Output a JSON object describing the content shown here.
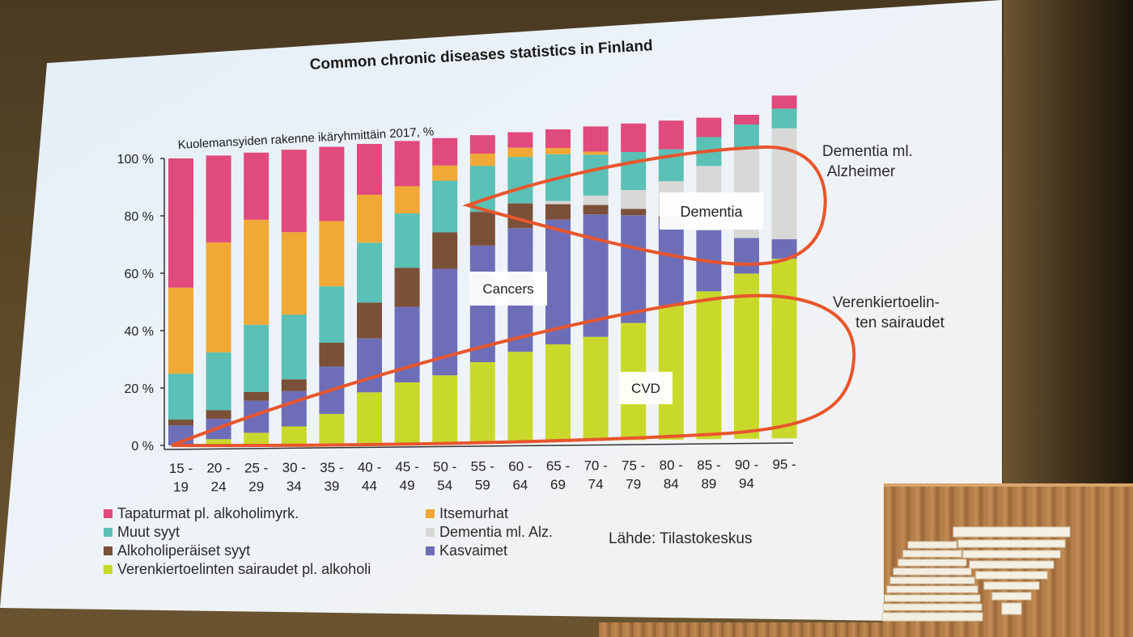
{
  "slide": {
    "title": "Common chronic diseases statistics in Finland",
    "source": "Lähde: Tilastokeskus"
  },
  "annotations": {
    "dementia_callout": [
      "Dementia ml.",
      "Alzheimer"
    ],
    "cvd_callout": [
      "Verenkiertoelin-",
      "ten sairaudet"
    ],
    "dementia_box": "Dementia",
    "cancers_box": "Cancers",
    "cvd_box": "CVD",
    "loop_color": "#e8552c"
  },
  "chart_data": {
    "type": "bar",
    "stacked": true,
    "title": "Kuolemansyiden rakenne ikäryhmittäin 2017, %",
    "xlabel": "",
    "ylabel": "",
    "ylim": [
      0,
      100
    ],
    "yticks": [
      "0 %",
      "20 %",
      "40 %",
      "60 %",
      "80 %",
      "100 %"
    ],
    "grid": false,
    "legend_position": "bottom",
    "categories": [
      [
        "15 -",
        "19"
      ],
      [
        "20 -",
        "24"
      ],
      [
        "25 -",
        "29"
      ],
      [
        "30 -",
        "34"
      ],
      [
        "35 -",
        "39"
      ],
      [
        "40 -",
        "44"
      ],
      [
        "45 -",
        "49"
      ],
      [
        "50 -",
        "54"
      ],
      [
        "55 -",
        "59"
      ],
      [
        "60 -",
        "64"
      ],
      [
        "65 -",
        "69"
      ],
      [
        "70 -",
        "74"
      ],
      [
        "75 -",
        "79"
      ],
      [
        "80 -",
        "84"
      ],
      [
        "85 -",
        "89"
      ],
      [
        "90 -",
        "94"
      ],
      [
        "95 -",
        ""
      ]
    ],
    "series": [
      {
        "name": "Verenkiertoelinten sairaudet pl. alkoholi",
        "color": "#c9d92c",
        "values": [
          0,
          2,
          4,
          6,
          10,
          17,
          20,
          22,
          26,
          29,
          31,
          33,
          37,
          42,
          46,
          51,
          55
        ]
      },
      {
        "name": "Kasvaimet",
        "color": "#6e6eb8",
        "values": [
          7,
          7,
          11,
          12,
          16,
          18,
          25,
          35,
          38,
          40,
          40,
          39,
          34,
          27,
          19,
          11,
          6
        ]
      },
      {
        "name": "Alkoholiperäiset syyt",
        "color": "#7a5038",
        "values": [
          2,
          3,
          3,
          4,
          8,
          12,
          13,
          12,
          11,
          8,
          5,
          3,
          2,
          1,
          0,
          0,
          0
        ]
      },
      {
        "name": "Dementia ml. Alz.",
        "color": "#d8d8d6",
        "values": [
          0,
          0,
          0,
          0,
          0,
          0,
          0,
          0,
          0,
          0,
          1,
          3,
          6,
          11,
          20,
          28,
          34
        ]
      },
      {
        "name": "Muut syyt",
        "color": "#5bc0b6",
        "values": [
          16,
          20,
          23,
          22,
          19,
          20,
          18,
          17,
          15,
          15,
          15,
          13,
          12,
          10,
          9,
          7,
          6
        ]
      },
      {
        "name": "Itsemurhat",
        "color": "#f0a836",
        "values": [
          30,
          38,
          36,
          28,
          22,
          16,
          9,
          5,
          4,
          3,
          2,
          1,
          0,
          0,
          0,
          0,
          0
        ]
      },
      {
        "name": "Tapaturmat pl. alkoholimyrk.",
        "color": "#e04a7c",
        "values": [
          45,
          30,
          23,
          28,
          25,
          17,
          15,
          9,
          6,
          5,
          6,
          8,
          9,
          9,
          6,
          3,
          4
        ]
      }
    ],
    "legend_rows": [
      [
        "Tapaturmat pl. alkoholimyrk.",
        "Itsemurhat"
      ],
      [
        "Muut syyt",
        "Dementia ml. Alz."
      ],
      [
        "Alkoholiperäiset syyt",
        "Kasvaimet"
      ],
      [
        "Verenkiertoelinten sairaudet pl. alkoholi",
        ""
      ]
    ]
  }
}
